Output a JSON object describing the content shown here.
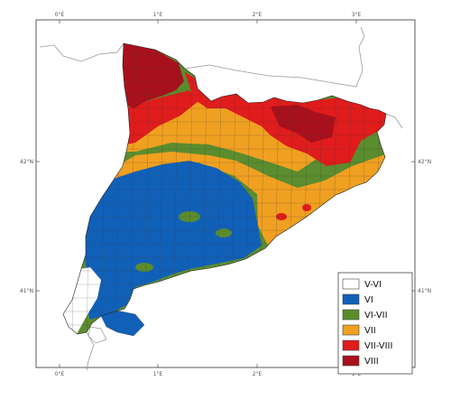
{
  "map": {
    "ticks": {
      "top": [
        "0°E",
        "1°E",
        "2°E",
        "3°E"
      ],
      "bottom": [
        "0°E",
        "1°E",
        "2°E",
        "3°E"
      ],
      "left": [
        "42°N",
        "41°N"
      ],
      "right": [
        "42°N",
        "41°N"
      ]
    },
    "colors": {
      "V-VI": "#ffffff",
      "VI": "#1160b8",
      "VI-VII": "#5b8c2e",
      "VII": "#f0a020",
      "VII-VIII": "#e01c1c",
      "VIII": "#a8101c",
      "border": "#666666",
      "outline": "#222222"
    },
    "legend": {
      "items": [
        {
          "label": "V-VI",
          "color": "#ffffff"
        },
        {
          "label": "VI",
          "color": "#1160b8"
        },
        {
          "label": "VI-VII",
          "color": "#5b8c2e"
        },
        {
          "label": "VII",
          "color": "#f0a020"
        },
        {
          "label": "VII-VIII",
          "color": "#e01c1c"
        },
        {
          "label": "VIII",
          "color": "#a8101c"
        }
      ]
    }
  }
}
